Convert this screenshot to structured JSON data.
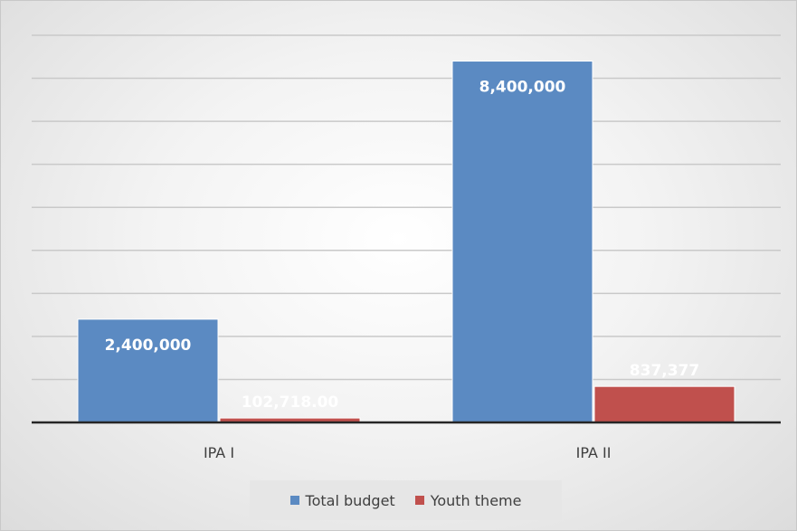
{
  "chart_data": {
    "type": "bar",
    "title": "",
    "xlabel": "",
    "ylabel": "",
    "categories": [
      "IPA I",
      "IPA II"
    ],
    "series": [
      {
        "name": "Total budget",
        "color": "#5b8ac2",
        "values": [
          2400000,
          8400000
        ],
        "labels": [
          "2,400,000",
          "8,400,000"
        ]
      },
      {
        "name": "Youth theme",
        "color": "#c0504d",
        "values": [
          102718,
          837377
        ],
        "labels": [
          "102,718.00",
          "837,377"
        ]
      }
    ],
    "ylim": [
      0,
      9000000
    ],
    "y_grid_step": 1000000,
    "grid": true,
    "y_tick_labels_visible": false,
    "legend_position": "bottom"
  }
}
